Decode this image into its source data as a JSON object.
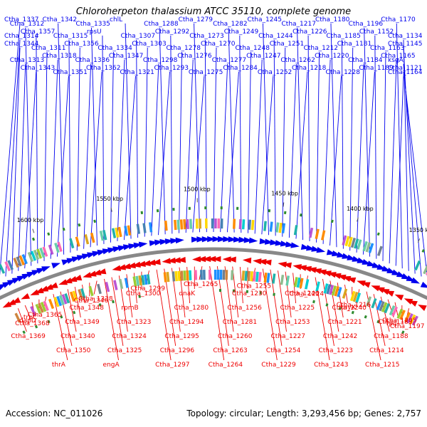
{
  "title": "Chloroherpeton thalassium ATCC 35110, complete genome",
  "footer": {
    "accession": "Accession: NC_011026",
    "summary": "Topology: circular; Length: 3,293,456 bp; Genes: 2,757"
  },
  "scale_ticks": [
    "1350 kbp",
    "1400 kbp",
    "1450 kbp",
    "1500 kbp",
    "1550 kbp",
    "1600 kbp"
  ],
  "colors": {
    "forward_genes": "#0000ee",
    "reverse_genes": "#ee0000",
    "backbone": "#888888",
    "feature_marker": "#2e8b2e"
  },
  "forward_labels": [
    "Ctha_1337",
    "Ctha_1314",
    "Ctha_1344",
    "Ctha_1313",
    "Ctha_1343",
    "Ctha_1312",
    "Ctha_1357",
    "Ctha_1311",
    "Ctha_1318",
    "Ctha_1351",
    "Ctha_1342",
    "Ctha_1315",
    "Ctha_1356",
    "Ctha_1336",
    "Ctha_1362",
    "Ctha_1335",
    "rpsU",
    "Ctha_1334",
    "Ctha_1347",
    "Ctha_1321",
    "chlL",
    "Ctha_1307",
    "Ctha_1303",
    "Ctha_1298",
    "Ctha_1293",
    "Ctha_1288",
    "Ctha_1292",
    "Ctha_1278",
    "Ctha_1276",
    "Ctha_1275",
    "Ctha_1279",
    "Ctha_1273",
    "Ctha_1270",
    "Ctha_1277",
    "Ctha_1284",
    "Ctha_1282",
    "Ctha_1249",
    "Ctha_1248",
    "Ctha_1247",
    "Ctha_1252",
    "Ctha_1245",
    "Ctha_1244",
    "Ctha_1251",
    "Ctha_1262",
    "Ctha_1218",
    "Ctha_1217",
    "Ctha_1226",
    "Ctha_1212",
    "Ctha_1220",
    "Ctha_1228",
    "Ctha_1180",
    "Ctha_1185",
    "Ctha_1181",
    "Ctha_1184",
    "Ctha_1189",
    "Ctha_1196",
    "Ctha_1152",
    "Ctha_1163",
    "Ctha_1165",
    "Ctha_1164",
    "Ctha_1170",
    "Ctha_1134",
    "Ctha_1145",
    "ksgA",
    "Ctha_1121"
  ],
  "reverse_labels": [
    "Ctha_1197",
    "rplJ",
    "Ctha_1205",
    "Ctha_1183",
    "Ctha_1188",
    "Ctha_1214",
    "Ctha_1215",
    "thyX",
    "Ctha_1216",
    "Ctha_1240",
    "Ctha_1221",
    "Ctha_1242",
    "Ctha_1223",
    "Ctha_1243",
    "Ctha_1224",
    "Ctha_1246",
    "Ctha_1225",
    "Ctha_1253",
    "Ctha_1227",
    "Ctha_1254",
    "Ctha_1229",
    "Ctha_1255",
    "Ctha_1230",
    "Ctha_1256",
    "Ctha_1281",
    "Ctha_1260",
    "Ctha_1263",
    "Ctha_1264",
    "Ctha_1265",
    "dnaK",
    "Ctha_1280",
    "Ctha_1294",
    "Ctha_1295",
    "Ctha_1296",
    "Ctha_1297",
    "Ctha_1299",
    "Ctha_1300",
    "rpmB",
    "Ctha_1323",
    "Ctha_1324",
    "Ctha_1325",
    "engA",
    "Ctha_1338",
    "Ctha_1346",
    "Ctha_1348",
    "Ctha_1349",
    "Ctha_1340",
    "Ctha_1350",
    "thrA",
    "Ctha_1365",
    "trpC",
    "dapD",
    "Ctha_1368",
    "Ctha_1369"
  ]
}
